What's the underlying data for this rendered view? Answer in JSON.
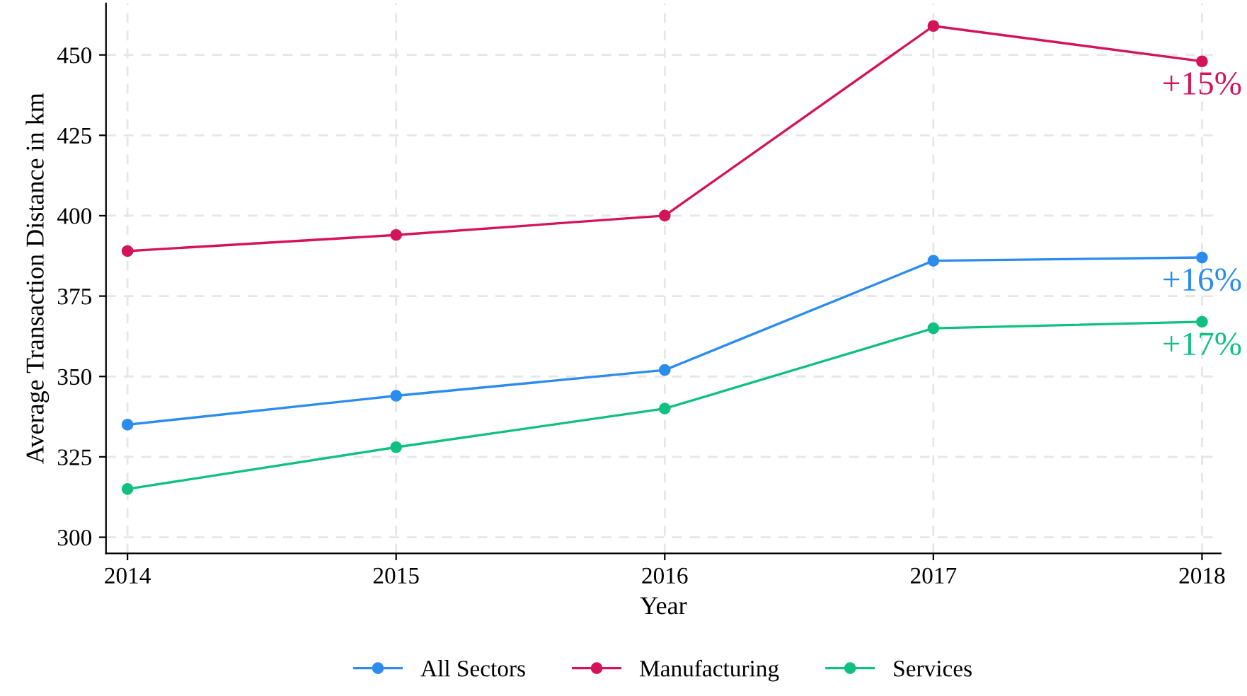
{
  "chart_data": {
    "type": "line",
    "xlabel": "Year",
    "ylabel": "Average Transaction Distance in km",
    "x": [
      2014,
      2015,
      2016,
      2017,
      2018
    ],
    "series": [
      {
        "name": "All Sectors",
        "color": "#2b8cee",
        "values": [
          335,
          344,
          352,
          386,
          387
        ]
      },
      {
        "name": "Manufacturing",
        "color": "#d4145a",
        "values": [
          389,
          394,
          400,
          459,
          448
        ]
      },
      {
        "name": "Services",
        "color": "#10c080",
        "values": [
          315,
          328,
          340,
          365,
          367
        ]
      }
    ],
    "annotations": [
      "+16%",
      "+15%",
      "+17%"
    ],
    "xlim": [
      2013.92,
      2018.07
    ],
    "xticks": [
      2014,
      2015,
      2016,
      2017,
      2018
    ],
    "ylim": [
      295,
      466
    ],
    "yticks": [
      300,
      325,
      350,
      375,
      400,
      425,
      450
    ],
    "grid": true,
    "legend": "bottom",
    "marker": "circle",
    "line_style": "solid"
  }
}
